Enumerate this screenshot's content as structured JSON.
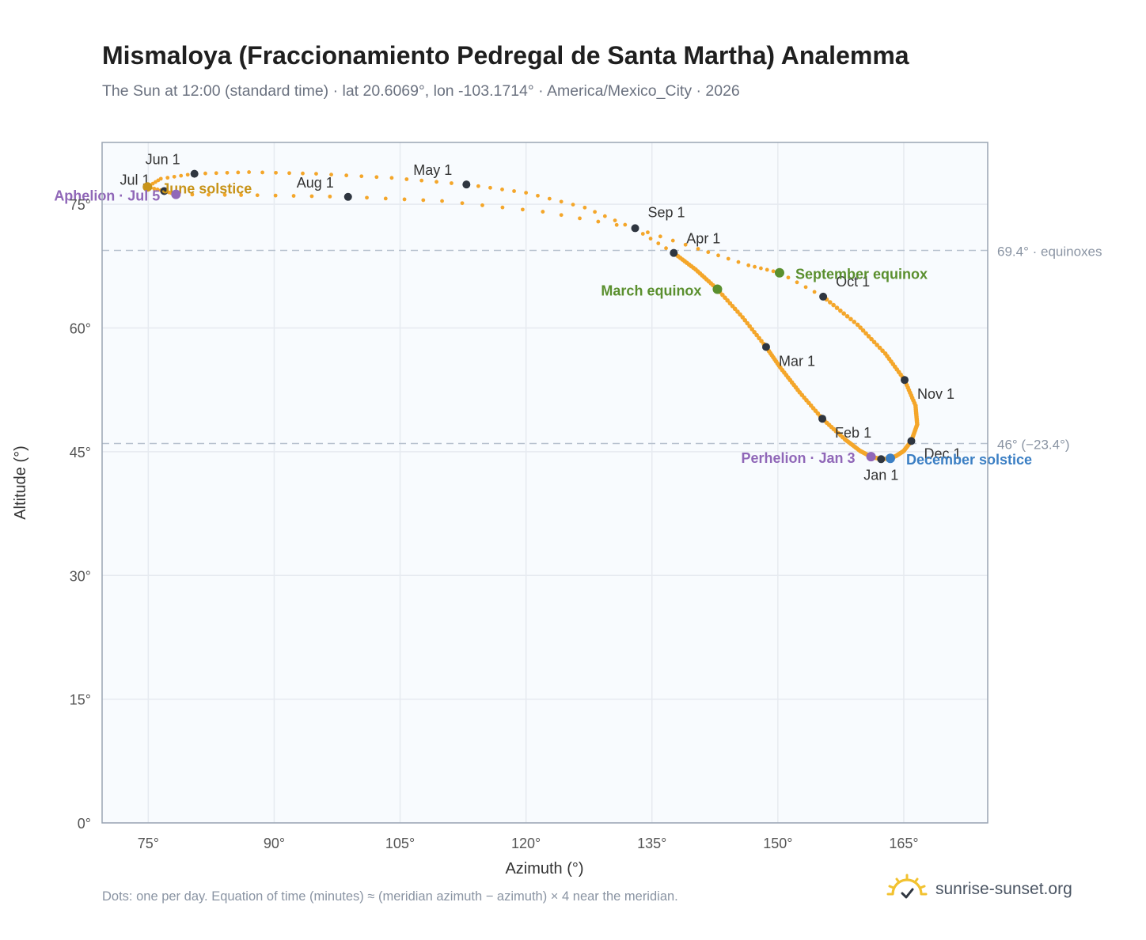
{
  "header": {
    "title": "Mismaloya (Fraccionamiento Pedregal de Santa Martha) Analemma",
    "subtitle": "The Sun at 12:00 (standard time) · lat 20.6069°, lon -103.1714° · America/Mexico_City · 2026"
  },
  "footer": {
    "note": "Dots: one per day. Equation of time (minutes) ≈ (meridian azimuth − azimuth) × 4 near the meridian.",
    "brand": "sunrise-sunset.org"
  },
  "colors": {
    "analemma": "#f4a62a",
    "month_marker": "#2f3640",
    "equinox": "#5a8f2e",
    "june_solstice": "#c8941a",
    "december_solstice": "#3b7fc4",
    "apsis": "#9067b8",
    "grid": "#e6eaf0",
    "plot_background": "#f8fbfe",
    "frame": "#9aa5b4"
  },
  "chart_data": {
    "type": "scatter",
    "xlabel": "Azimuth (°)",
    "ylabel": "Altitude (°)",
    "xlim": [
      69.5,
      175
    ],
    "ylim": [
      0,
      82.5
    ],
    "x_ticks": [
      75,
      90,
      105,
      120,
      135,
      150,
      165
    ],
    "x_tick_labels": [
      "75°",
      "90°",
      "105°",
      "120°",
      "135°",
      "150°",
      "165°"
    ],
    "y_ticks": [
      0,
      15,
      30,
      45,
      60,
      75
    ],
    "y_tick_labels": [
      "0°",
      "15°",
      "30°",
      "45°",
      "60°",
      "75°"
    ],
    "grid": true,
    "reference_lines": [
      {
        "y": 69.4,
        "label": "69.4° · equinoxes"
      },
      {
        "y": 46.0,
        "label": "46° (−23.4°)"
      }
    ],
    "month_markers": [
      {
        "label": "Jan 1",
        "x": 162.3,
        "y": 44.1
      },
      {
        "label": "Feb 1",
        "x": 155.3,
        "y": 49.0
      },
      {
        "label": "Mar 1",
        "x": 148.6,
        "y": 57.7
      },
      {
        "label": "Apr 1",
        "x": 137.6,
        "y": 69.1
      },
      {
        "label": "May 1",
        "x": 112.9,
        "y": 77.4
      },
      {
        "label": "Jun 1",
        "x": 80.5,
        "y": 78.7
      },
      {
        "label": "Jul 1",
        "x": 76.9,
        "y": 76.6
      },
      {
        "label": "Aug 1",
        "x": 98.8,
        "y": 75.9
      },
      {
        "label": "Sep 1",
        "x": 133.0,
        "y": 72.1
      },
      {
        "label": "Oct 1",
        "x": 155.4,
        "y": 63.8
      },
      {
        "label": "Nov 1",
        "x": 165.1,
        "y": 53.7
      },
      {
        "label": "Dec 1",
        "x": 165.9,
        "y": 46.3
      }
    ],
    "events": [
      {
        "label": "March equinox",
        "x": 142.8,
        "y": 64.7,
        "kind": "equinox"
      },
      {
        "label": "September equinox",
        "x": 150.2,
        "y": 66.7,
        "kind": "equinox"
      },
      {
        "label": "June solstice",
        "x": 74.9,
        "y": 77.1,
        "kind": "june_solstice"
      },
      {
        "label": "December solstice",
        "x": 163.4,
        "y": 44.2,
        "kind": "december_solstice"
      },
      {
        "label": "Perhelion · Jan 3",
        "x": 161.1,
        "y": 44.4,
        "kind": "apsis"
      },
      {
        "label": "Aphelion · Jul 5",
        "x": 78.3,
        "y": 76.2,
        "kind": "apsis"
      }
    ],
    "path": {
      "dense_daily": [
        {
          "x": 165.9,
          "y": 46.3
        },
        {
          "x": 165.0,
          "y": 45.1
        },
        {
          "x": 164.1,
          "y": 44.5
        },
        {
          "x": 163.4,
          "y": 44.2
        },
        {
          "x": 162.3,
          "y": 44.1
        },
        {
          "x": 161.1,
          "y": 44.4
        },
        {
          "x": 159.8,
          "y": 45.1
        },
        {
          "x": 158.0,
          "y": 46.5
        },
        {
          "x": 155.3,
          "y": 49.0
        },
        {
          "x": 152.6,
          "y": 52.2
        },
        {
          "x": 150.3,
          "y": 55.2
        },
        {
          "x": 148.6,
          "y": 57.7
        },
        {
          "x": 145.8,
          "y": 61.3
        },
        {
          "x": 142.8,
          "y": 64.7
        },
        {
          "x": 140.2,
          "y": 67.1
        },
        {
          "x": 137.6,
          "y": 69.1
        }
      ],
      "sparse_daily": [
        {
          "x": 137.6,
          "y": 69.1
        },
        {
          "x": 133.0,
          "y": 72.0
        },
        {
          "x": 127.0,
          "y": 74.6
        },
        {
          "x": 120.0,
          "y": 76.4
        },
        {
          "x": 112.9,
          "y": 77.4
        },
        {
          "x": 104.0,
          "y": 78.2
        },
        {
          "x": 95.0,
          "y": 78.7
        },
        {
          "x": 87.0,
          "y": 78.9
        },
        {
          "x": 80.5,
          "y": 78.7
        },
        {
          "x": 76.5,
          "y": 78.1
        },
        {
          "x": 74.9,
          "y": 77.1
        },
        {
          "x": 76.9,
          "y": 76.6
        },
        {
          "x": 78.3,
          "y": 76.2
        },
        {
          "x": 88.0,
          "y": 76.1
        },
        {
          "x": 98.8,
          "y": 75.9
        },
        {
          "x": 110.0,
          "y": 75.4
        },
        {
          "x": 122.0,
          "y": 74.1
        },
        {
          "x": 133.0,
          "y": 72.1
        },
        {
          "x": 140.5,
          "y": 69.6
        },
        {
          "x": 146.5,
          "y": 67.6
        },
        {
          "x": 150.2,
          "y": 66.7
        },
        {
          "x": 155.4,
          "y": 63.8
        }
      ],
      "dense_daily_2": [
        {
          "x": 155.4,
          "y": 63.8
        },
        {
          "x": 159.5,
          "y": 60.4
        },
        {
          "x": 162.8,
          "y": 56.9
        },
        {
          "x": 165.1,
          "y": 53.7
        },
        {
          "x": 166.4,
          "y": 50.6
        },
        {
          "x": 166.6,
          "y": 48.3
        },
        {
          "x": 165.9,
          "y": 46.3
        }
      ]
    }
  }
}
